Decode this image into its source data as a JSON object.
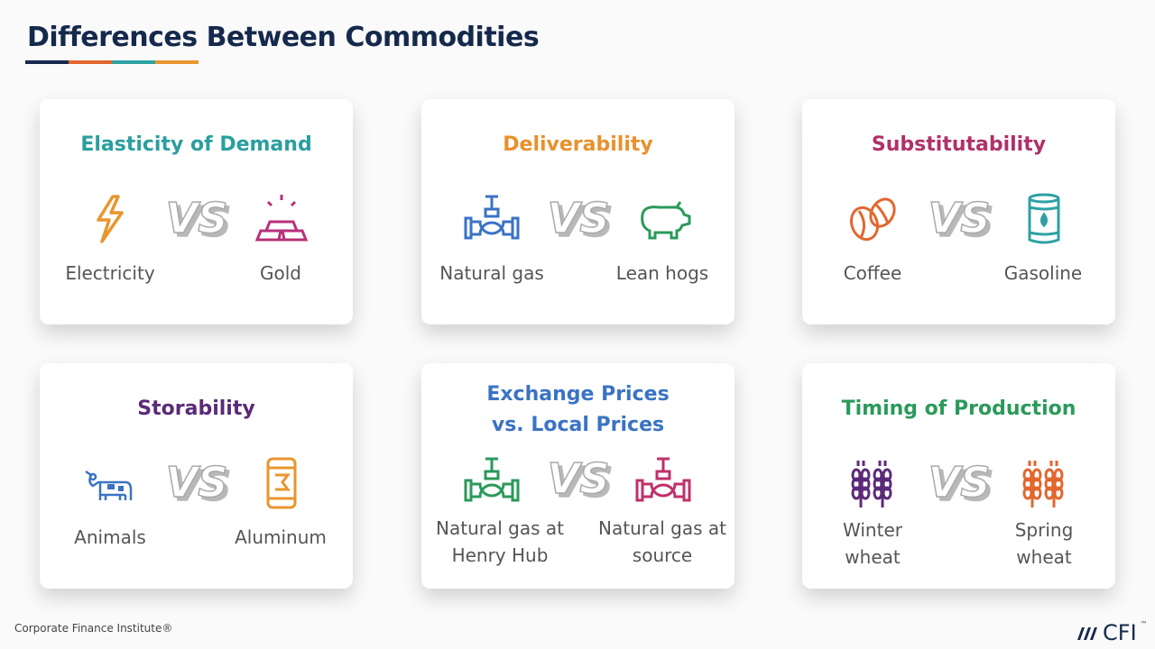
{
  "title": "Differences Between Commodities",
  "accent_colors": [
    "#15294d",
    "#e2672e",
    "#2ea1a3",
    "#e8962e"
  ],
  "cards": [
    {
      "title": "Elasticity of Demand",
      "color": "#2a9ea0",
      "left": {
        "label": "Electricity",
        "icon": "lightning-icon",
        "color": "#e8962e"
      },
      "right": {
        "label": "Gold",
        "icon": "gold-bars-icon",
        "color": "#b8307a"
      }
    },
    {
      "title": "Deliverability",
      "color": "#e8912d",
      "left": {
        "label": "Natural gas",
        "icon": "gas-valve-icon",
        "color": "#3a73c4"
      },
      "right": {
        "label": "Lean hogs",
        "icon": "pig-icon",
        "color": "#2a9a5a"
      }
    },
    {
      "title": "Substitutability",
      "color": "#b0306a",
      "left": {
        "label": "Coffee",
        "icon": "coffee-beans-icon",
        "color": "#e2672e"
      },
      "right": {
        "label": "Gasoline",
        "icon": "oil-barrel-icon",
        "color": "#2ea1a3"
      }
    },
    {
      "title": "Storability",
      "color": "#5b2a78",
      "left": {
        "label": "Animals",
        "icon": "cow-icon",
        "color": "#3a73c4"
      },
      "right": {
        "label": "Aluminum",
        "icon": "can-icon",
        "color": "#e8962e"
      }
    },
    {
      "title": "Exchange Prices vs. Local Prices",
      "color": "#3a73c4",
      "left": {
        "label": "Natural gas at Henry Hub",
        "icon": "gas-valve-icon",
        "color": "#2a9a5a"
      },
      "right": {
        "label": "Natural gas at source",
        "icon": "gas-valve-icon",
        "color": "#c0306a"
      }
    },
    {
      "title": "Timing of Production",
      "color": "#2a9a5a",
      "left": {
        "label": "Winter wheat",
        "icon": "wheat-icon",
        "color": "#5b2a78"
      },
      "right": {
        "label": "Spring wheat",
        "icon": "wheat-icon",
        "color": "#e2672e"
      }
    }
  ],
  "vs_label": "VS",
  "footer": "Corporate Finance Institute®",
  "logo": {
    "text": "CFI",
    "tm": "™"
  }
}
